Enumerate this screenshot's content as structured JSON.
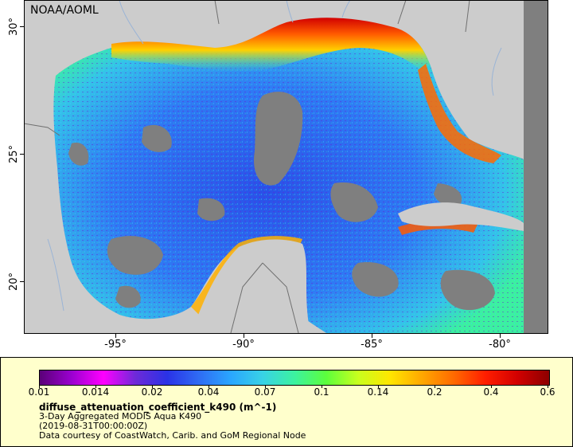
{
  "map": {
    "credit": "NOAA/AOML",
    "lat_labels": [
      "30°",
      "25°",
      "20°"
    ],
    "lon_labels": [
      "-95°",
      "-90°",
      "-85°",
      "-80°"
    ],
    "colors": {
      "land": "#cccccc",
      "no_data": "#7f7f7f",
      "borders": "#707070",
      "rivers": "#9ab4d6"
    }
  },
  "legend": {
    "tick_labels": [
      "0.01",
      "0.014",
      "0.02",
      "0.04",
      "0.07",
      "0.1",
      "0.14",
      "0.2",
      "0.4",
      "0.6"
    ],
    "variable": "diffuse_attenuation_coefficient_k490 (m^-1)",
    "dataset": "3-Day Aggregated MODIS Aqua K490",
    "time": "(2019-08-31T00:00:00Z)",
    "source": "Data courtesy of CoastWatch, Carib. and GoM Regional Node",
    "colormap": [
      "#5a0078",
      "#9b00d0",
      "#ff00ff",
      "#6e2ad8",
      "#2a32e6",
      "#2f6cf4",
      "#2aa6ff",
      "#38d2e6",
      "#3cf2a0",
      "#5cff3c",
      "#c8ff1e",
      "#ffe600",
      "#ffa800",
      "#ff6a00",
      "#ff1e00",
      "#d20000",
      "#8c0000"
    ]
  }
}
